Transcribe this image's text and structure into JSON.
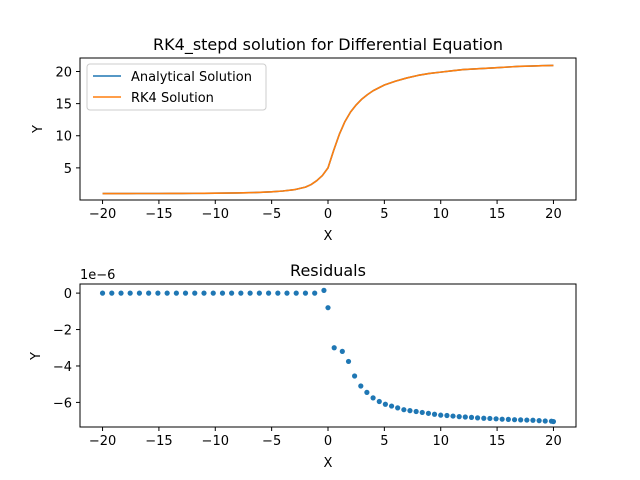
{
  "chart_data": [
    {
      "type": "line",
      "title": "RK4_stepd solution for Differential Equation",
      "xlabel": "X",
      "ylabel": "Y",
      "xlim": [
        -22,
        22
      ],
      "ylim": [
        -0.0,
        22.1
      ],
      "xticks": [
        -20,
        -15,
        -10,
        -5,
        0,
        5,
        10,
        15,
        20
      ],
      "yticks": [
        5,
        10,
        15,
        20
      ],
      "legend_position": "upper-left",
      "x": [
        -20,
        -19,
        -18,
        -17,
        -16,
        -15,
        -14,
        -13,
        -12,
        -11,
        -10,
        -9,
        -8,
        -7,
        -6,
        -5,
        -4,
        -3,
        -2,
        -1.5,
        -1,
        -0.5,
        0,
        0.5,
        1,
        1.5,
        2,
        2.5,
        3,
        3.5,
        4,
        5,
        6,
        7,
        8,
        9,
        10,
        11,
        12,
        13,
        14,
        15,
        16,
        17,
        18,
        19,
        20
      ],
      "series": [
        {
          "name": "Analytical Solution",
          "color": "#1f77b4",
          "values": [
            1.0,
            1.0,
            1.0,
            1.01,
            1.01,
            1.01,
            1.02,
            1.02,
            1.03,
            1.04,
            1.06,
            1.08,
            1.1,
            1.14,
            1.19,
            1.27,
            1.4,
            1.6,
            2.0,
            2.4,
            3.0,
            3.8,
            5.0,
            7.7,
            10.2,
            12.2,
            13.7,
            14.8,
            15.7,
            16.4,
            17.0,
            17.9,
            18.5,
            19.0,
            19.4,
            19.7,
            19.9,
            20.1,
            20.3,
            20.4,
            20.5,
            20.6,
            20.7,
            20.8,
            20.85,
            20.9,
            20.95
          ]
        },
        {
          "name": "RK4 Solution",
          "color": "#ff7f0e",
          "values": [
            1.0,
            1.0,
            1.0,
            1.01,
            1.01,
            1.01,
            1.02,
            1.02,
            1.03,
            1.04,
            1.06,
            1.08,
            1.1,
            1.14,
            1.19,
            1.27,
            1.4,
            1.6,
            2.0,
            2.4,
            3.0,
            3.8,
            5.0,
            7.7,
            10.2,
            12.2,
            13.7,
            14.8,
            15.7,
            16.4,
            17.0,
            17.9,
            18.5,
            19.0,
            19.4,
            19.7,
            19.9,
            20.1,
            20.3,
            20.4,
            20.5,
            20.6,
            20.7,
            20.8,
            20.85,
            20.9,
            20.95
          ]
        }
      ]
    },
    {
      "type": "scatter",
      "title": "Residuals",
      "xlabel": "X",
      "ylabel": "Y",
      "offset_label": "1e−6",
      "xlim": [
        -22,
        22
      ],
      "ylim": [
        -7.35,
        0.5
      ],
      "xticks": [
        -20,
        -15,
        -10,
        -5,
        0,
        5,
        10,
        15,
        20
      ],
      "yticks": [
        0,
        -2,
        -4,
        -6
      ],
      "series": [
        {
          "color": "#1f77b4",
          "x": [
            -20,
            -19.18,
            -18.36,
            -17.55,
            -16.73,
            -15.91,
            -15.09,
            -14.27,
            -13.45,
            -12.64,
            -11.82,
            -11.0,
            -10.18,
            -9.36,
            -8.55,
            -7.73,
            -6.91,
            -6.09,
            -5.27,
            -4.45,
            -3.64,
            -2.82,
            -2.0,
            -1.18,
            -0.36,
            0.0,
            0.55,
            1.27,
            1.82,
            2.36,
            2.91,
            3.45,
            4.0,
            4.55,
            5.09,
            5.64,
            6.18,
            6.73,
            7.27,
            7.82,
            8.36,
            8.91,
            9.45,
            10.0,
            10.55,
            11.09,
            11.64,
            12.18,
            12.73,
            13.27,
            13.82,
            14.36,
            14.91,
            15.45,
            16.0,
            16.55,
            17.09,
            17.64,
            18.18,
            18.73,
            19.27,
            19.82,
            20.0
          ],
          "values": [
            0,
            0,
            0,
            0,
            0,
            0,
            0,
            0,
            0,
            0,
            0,
            0,
            0,
            0,
            0,
            0,
            0,
            0,
            0,
            0,
            0,
            0,
            0,
            0,
            0.15,
            -0.8,
            -3.0,
            -3.2,
            -3.75,
            -4.55,
            -5.1,
            -5.45,
            -5.75,
            -5.95,
            -6.1,
            -6.2,
            -6.3,
            -6.4,
            -6.45,
            -6.5,
            -6.55,
            -6.6,
            -6.65,
            -6.7,
            -6.72,
            -6.75,
            -6.78,
            -6.8,
            -6.82,
            -6.85,
            -6.87,
            -6.88,
            -6.9,
            -6.92,
            -6.93,
            -6.95,
            -6.96,
            -6.97,
            -6.98,
            -7.0,
            -7.02,
            -7.03,
            -7.05
          ]
        }
      ]
    }
  ]
}
